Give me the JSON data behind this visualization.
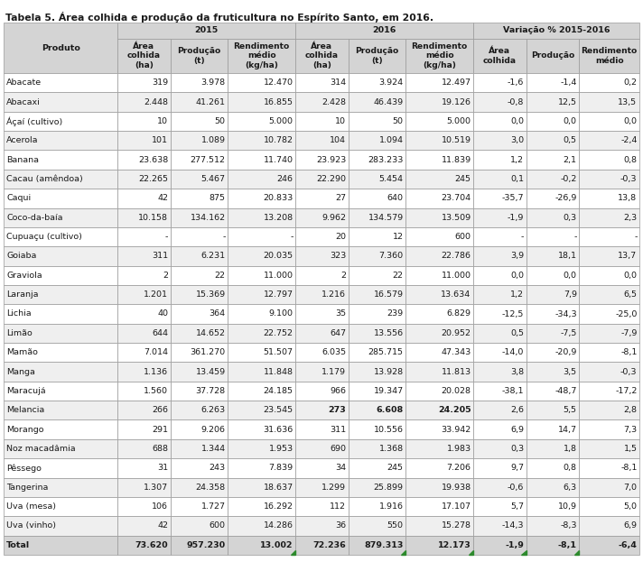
{
  "title": "Tabela 5. Área colhida e produção da fruticultura no Espírito Santo, em 2016.",
  "rows": [
    [
      "Abacate",
      "319",
      "3.978",
      "12.470",
      "314",
      "3.924",
      "12.497",
      "-1,6",
      "-1,4",
      "0,2"
    ],
    [
      "Abacaxi",
      "2.448",
      "41.261",
      "16.855",
      "2.428",
      "46.439",
      "19.126",
      "-0,8",
      "12,5",
      "13,5"
    ],
    [
      "Áçaí (cultivo)",
      "10",
      "50",
      "5.000",
      "10",
      "50",
      "5.000",
      "0,0",
      "0,0",
      "0,0"
    ],
    [
      "Acerola",
      "101",
      "1.089",
      "10.782",
      "104",
      "1.094",
      "10.519",
      "3,0",
      "0,5",
      "-2,4"
    ],
    [
      "Banana",
      "23.638",
      "277.512",
      "11.740",
      "23.923",
      "283.233",
      "11.839",
      "1,2",
      "2,1",
      "0,8"
    ],
    [
      "Cacau (amêndoa)",
      "22.265",
      "5.467",
      "246",
      "22.290",
      "5.454",
      "245",
      "0,1",
      "-0,2",
      "-0,3"
    ],
    [
      "Caqui",
      "42",
      "875",
      "20.833",
      "27",
      "640",
      "23.704",
      "-35,7",
      "-26,9",
      "13,8"
    ],
    [
      "Coco-da-baía",
      "10.158",
      "134.162",
      "13.208",
      "9.962",
      "134.579",
      "13.509",
      "-1,9",
      "0,3",
      "2,3"
    ],
    [
      "Cupuaçu (cultivo)",
      "-",
      "-",
      "-",
      "20",
      "12",
      "600",
      "-",
      "-",
      "-"
    ],
    [
      "Goiaba",
      "311",
      "6.231",
      "20.035",
      "323",
      "7.360",
      "22.786",
      "3,9",
      "18,1",
      "13,7"
    ],
    [
      "Graviola",
      "2",
      "22",
      "11.000",
      "2",
      "22",
      "11.000",
      "0,0",
      "0,0",
      "0,0"
    ],
    [
      "Laranja",
      "1.201",
      "15.369",
      "12.797",
      "1.216",
      "16.579",
      "13.634",
      "1,2",
      "7,9",
      "6,5"
    ],
    [
      "Lichia",
      "40",
      "364",
      "9.100",
      "35",
      "239",
      "6.829",
      "-12,5",
      "-34,3",
      "-25,0"
    ],
    [
      "Limão",
      "644",
      "14.652",
      "22.752",
      "647",
      "13.556",
      "20.952",
      "0,5",
      "-7,5",
      "-7,9"
    ],
    [
      "Mamão",
      "7.014",
      "361.270",
      "51.507",
      "6.035",
      "285.715",
      "47.343",
      "-14,0",
      "-20,9",
      "-8,1"
    ],
    [
      "Manga",
      "1.136",
      "13.459",
      "11.848",
      "1.179",
      "13.928",
      "11.813",
      "3,8",
      "3,5",
      "-0,3"
    ],
    [
      "Maracujá",
      "1.560",
      "37.728",
      "24.185",
      "966",
      "19.347",
      "20.028",
      "-38,1",
      "-48,7",
      "-17,2"
    ],
    [
      "Melancia",
      "266",
      "6.263",
      "23.545",
      "273",
      "6.608",
      "24.205",
      "2,6",
      "5,5",
      "2,8"
    ],
    [
      "Morango",
      "291",
      "9.206",
      "31.636",
      "311",
      "10.556",
      "33.942",
      "6,9",
      "14,7",
      "7,3"
    ],
    [
      "Noz macadâmia",
      "688",
      "1.344",
      "1.953",
      "690",
      "1.368",
      "1.983",
      "0,3",
      "1,8",
      "1,5"
    ],
    [
      "Pêssego",
      "31",
      "243",
      "7.839",
      "34",
      "245",
      "7.206",
      "9,7",
      "0,8",
      "-8,1"
    ],
    [
      "Tangerina",
      "1.307",
      "24.358",
      "18.637",
      "1.299",
      "25.899",
      "19.938",
      "-0,6",
      "6,3",
      "7,0"
    ],
    [
      "Uva (mesa)",
      "106",
      "1.727",
      "16.292",
      "112",
      "1.916",
      "17.107",
      "5,7",
      "10,9",
      "5,0"
    ],
    [
      "Uva (vinho)",
      "42",
      "600",
      "14.286",
      "36",
      "550",
      "15.278",
      "-14,3",
      "-8,3",
      "6,9"
    ],
    [
      "Total",
      "73.620",
      "957.230",
      "13.002",
      "72.236",
      "879.313",
      "12.173",
      "-1,9",
      "-8,1",
      "-6,4"
    ]
  ],
  "bg_header": "#d4d4d4",
  "bg_odd": "#efefef",
  "bg_even": "#ffffff",
  "bg_total": "#d4d4d4",
  "border_color": "#999999",
  "text_color": "#1a1a1a",
  "green_color": "#2d8a2d",
  "col_widths_rel": [
    1.55,
    0.72,
    0.78,
    0.92,
    0.72,
    0.78,
    0.92,
    0.72,
    0.72,
    0.82
  ],
  "font_size_title": 7.8,
  "font_size_header": 6.8,
  "font_size_data": 6.8,
  "melancia_bold_cols": [
    3,
    4,
    5,
    6,
    7,
    8,
    9
  ]
}
